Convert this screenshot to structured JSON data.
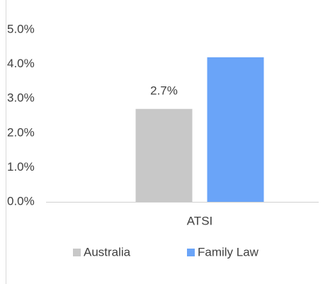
{
  "chart_data": {
    "type": "bar",
    "categories": [
      "ATSI"
    ],
    "series": [
      {
        "name": "Australia",
        "color": "#c8c8c8",
        "values": [
          2.7
        ],
        "value_labels": [
          "2.7%"
        ]
      },
      {
        "name": "Family Law",
        "color": "#6aa4f8",
        "values": [
          4.2
        ]
      }
    ],
    "ylim": [
      0,
      5
    ],
    "yticks": [
      {
        "value": 0,
        "label": "0.0%"
      },
      {
        "value": 1,
        "label": "1.0%"
      },
      {
        "value": 2,
        "label": "2.0%"
      },
      {
        "value": 3,
        "label": "3.0%"
      },
      {
        "value": 4,
        "label": "4.0%"
      },
      {
        "value": 5,
        "label": "5.0%"
      }
    ],
    "grid": false
  }
}
